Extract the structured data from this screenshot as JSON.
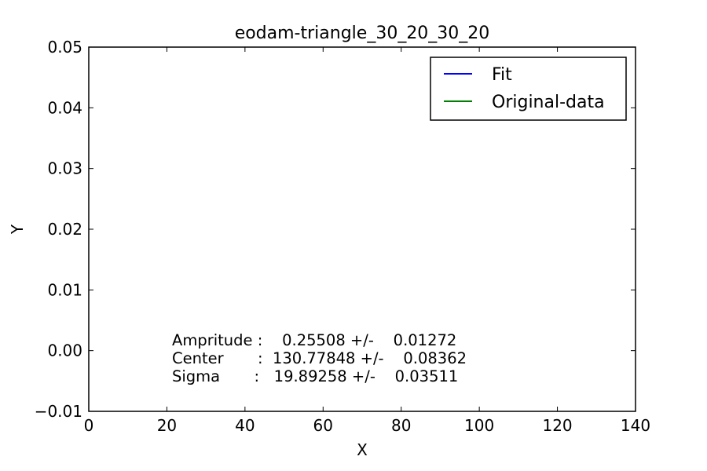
{
  "chart_data": {
    "type": "line",
    "title": "eodam-triangle_30_20_30_20",
    "xlabel": "X",
    "ylabel": "Y",
    "xlim": [
      0,
      140
    ],
    "ylim": [
      -0.01,
      0.05
    ],
    "x_ticks": [
      0,
      20,
      40,
      60,
      80,
      100,
      120,
      140
    ],
    "x_tick_labels": [
      "0",
      "20",
      "40",
      "60",
      "80",
      "100",
      "120",
      "140"
    ],
    "y_ticks": [
      0.05,
      0.04,
      0.03,
      0.02,
      0.01,
      0.0,
      -0.01
    ],
    "y_tick_labels": [
      "0.05",
      "0.04",
      "0.03",
      "0.02",
      "0.01",
      "0.00",
      "−0.01"
    ],
    "grid": false,
    "legend_position": "top-right",
    "series": [
      {
        "name": "Fit",
        "color": "#0000ff",
        "x": [],
        "y": []
      },
      {
        "name": "Original-data",
        "color": "#008000",
        "x": [],
        "y": []
      }
    ],
    "annotations": [
      "Ampritude :    0.25508 +/-    0.01272",
      "Center       :  130.77848 +/-    0.08362",
      "Sigma       :   19.89258 +/-    0.03511"
    ]
  }
}
